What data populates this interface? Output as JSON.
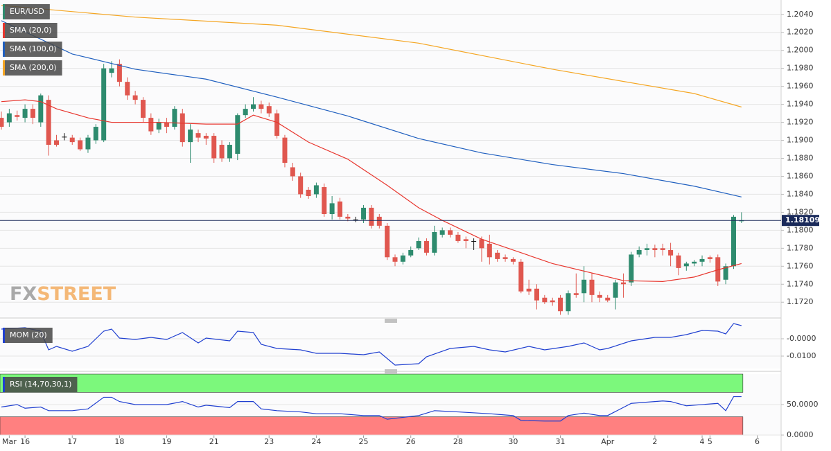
{
  "chart_data": [
    {
      "type": "candlestick",
      "title": "EUR/USD",
      "title_color": "#2e8b6e",
      "up_color": "#2e8b6e",
      "down_color": "#e0574f",
      "doji_color": "#111111",
      "categories": [
        null,
        "Mar",
        null,
        "16",
        null,
        null,
        null,
        null,
        null,
        "17",
        null,
        null,
        null,
        null,
        null,
        "18",
        null,
        null,
        null,
        null,
        null,
        "19",
        null,
        null,
        null,
        null,
        null,
        "21",
        null,
        null,
        null,
        null,
        null,
        null,
        "23",
        null,
        null,
        null,
        null,
        null,
        "24",
        null,
        null,
        null,
        null,
        null,
        "25",
        null,
        null,
        null,
        null,
        null,
        "26",
        null,
        null,
        null,
        null,
        null,
        "28",
        null,
        null,
        null,
        null,
        null,
        null,
        "30",
        null,
        null,
        null,
        null,
        null,
        "31",
        null,
        null,
        null,
        null,
        null,
        "Apr",
        null,
        null,
        null,
        null,
        null,
        "2",
        null,
        null,
        null,
        null,
        null,
        "4",
        "5",
        null,
        null,
        null,
        null,
        null,
        "6",
        null,
        null
      ],
      "ohlc": [
        [
          1.1925,
          1.1932,
          1.1912,
          1.1915
        ],
        [
          1.192,
          1.1935,
          1.1915,
          1.193
        ],
        [
          1.1928,
          1.1933,
          1.1922,
          1.1926
        ],
        [
          1.1925,
          1.194,
          1.192,
          1.1935
        ],
        [
          1.1935,
          1.194,
          1.1918,
          1.1925
        ],
        [
          1.192,
          1.1952,
          1.1915,
          1.195
        ],
        [
          1.1945,
          1.195,
          1.1883,
          1.1895
        ],
        [
          1.19,
          1.1906,
          1.1893,
          1.1895
        ],
        [
          1.1904,
          1.1908,
          1.19,
          1.1904
        ],
        [
          1.1903,
          1.1906,
          1.1895,
          1.1898
        ],
        [
          1.19,
          1.1903,
          1.1888,
          1.189
        ],
        [
          1.189,
          1.1906,
          1.1886,
          1.1903
        ],
        [
          1.19,
          1.1918,
          1.1896,
          1.1915
        ],
        [
          1.19,
          1.1985,
          1.1898,
          1.198
        ],
        [
          1.1975,
          1.1988,
          1.197,
          1.198
        ],
        [
          1.1985,
          1.199,
          1.196,
          1.1965
        ],
        [
          1.1965,
          1.197,
          1.1945,
          1.195
        ],
        [
          1.195,
          1.1955,
          1.194,
          1.1945
        ],
        [
          1.1945,
          1.1948,
          1.192,
          1.1925
        ],
        [
          1.1925,
          1.193,
          1.1906,
          1.191
        ],
        [
          1.1912,
          1.1924,
          1.1908,
          1.192
        ],
        [
          1.192,
          1.1925,
          1.1908,
          1.1915
        ],
        [
          1.1915,
          1.1938,
          1.1912,
          1.1935
        ],
        [
          1.193,
          1.1935,
          1.1893,
          1.1898
        ],
        [
          1.1898,
          1.1918,
          1.1875,
          1.1912
        ],
        [
          1.1908,
          1.1912,
          1.1898,
          1.1903
        ],
        [
          1.1905,
          1.1908,
          1.1895,
          1.1902
        ],
        [
          1.1905,
          1.1908,
          1.1875,
          1.188
        ],
        [
          1.1895,
          1.19,
          1.1876,
          1.188
        ],
        [
          1.188,
          1.1898,
          1.1876,
          1.1895
        ],
        [
          1.1885,
          1.193,
          1.1878,
          1.1928
        ],
        [
          1.1928,
          1.194,
          1.1925,
          1.1935
        ],
        [
          1.1935,
          1.1948,
          1.1932,
          1.194
        ],
        [
          1.194,
          1.1944,
          1.193,
          1.1935
        ],
        [
          1.1938,
          1.1942,
          1.1926,
          1.193
        ],
        [
          1.193,
          1.1934,
          1.1902,
          1.1905
        ],
        [
          1.1903,
          1.1906,
          1.187,
          1.1875
        ],
        [
          1.187,
          1.1875,
          1.1855,
          1.186
        ],
        [
          1.186,
          1.1864,
          1.1836,
          1.184
        ],
        [
          1.1845,
          1.1848,
          1.1835,
          1.1838
        ],
        [
          1.184,
          1.1853,
          1.1836,
          1.185
        ],
        [
          1.1848,
          1.1852,
          1.1815,
          1.1818
        ],
        [
          1.1818,
          1.1838,
          1.1812,
          1.183
        ],
        [
          1.1832,
          1.1836,
          1.1812,
          1.1815
        ],
        [
          1.1815,
          1.1818,
          1.181,
          1.1813
        ],
        [
          1.1812,
          1.1815,
          1.1809,
          1.1812
        ],
        [
          1.1812,
          1.1828,
          1.1808,
          1.1825
        ],
        [
          1.1825,
          1.1828,
          1.1802,
          1.1805
        ],
        [
          1.1815,
          1.1818,
          1.1802,
          1.1805
        ],
        [
          1.1805,
          1.1808,
          1.1767,
          1.177
        ],
        [
          1.177,
          1.1773,
          1.176,
          1.1765
        ],
        [
          1.1765,
          1.1775,
          1.1762,
          1.1772
        ],
        [
          1.1772,
          1.1782,
          1.177,
          1.1778
        ],
        [
          1.178,
          1.1792,
          1.1778,
          1.1788
        ],
        [
          1.1788,
          1.1791,
          1.1772,
          1.1775
        ],
        [
          1.1775,
          1.1805,
          1.1772,
          1.1798
        ],
        [
          1.1795,
          1.1803,
          1.1792,
          1.18
        ],
        [
          1.18,
          1.1803,
          1.1792,
          1.1795
        ],
        [
          1.1795,
          1.1798,
          1.1786,
          1.1788
        ],
        [
          1.179,
          1.1793,
          1.178,
          1.1788
        ],
        [
          1.1788,
          1.1791,
          1.1778,
          1.1788
        ],
        [
          1.179,
          1.1793,
          1.1765,
          1.178
        ],
        [
          1.1785,
          1.1795,
          1.1762,
          1.177
        ],
        [
          1.1775,
          1.1778,
          1.1765,
          1.1768
        ],
        [
          1.177,
          1.1773,
          1.1765,
          1.1768
        ],
        [
          1.1768,
          1.177,
          1.1762,
          1.1765
        ],
        [
          1.1765,
          1.1768,
          1.173,
          1.1732
        ],
        [
          1.1735,
          1.1745,
          1.1728,
          1.1732
        ],
        [
          1.1735,
          1.174,
          1.1712,
          1.1722
        ],
        [
          1.1725,
          1.1728,
          1.1718,
          1.172
        ],
        [
          1.1722,
          1.1725,
          1.1716,
          1.172
        ],
        [
          1.1725,
          1.1728,
          1.1706,
          1.171
        ],
        [
          1.171,
          1.1733,
          1.1706,
          1.173
        ],
        [
          1.173,
          1.1752,
          1.1725,
          1.1728
        ],
        [
          1.173,
          1.176,
          1.172,
          1.1745
        ],
        [
          1.1745,
          1.1752,
          1.172,
          1.1728
        ],
        [
          1.1728,
          1.1732,
          1.172,
          1.1725
        ],
        [
          1.1725,
          1.1728,
          1.172,
          1.1722
        ],
        [
          1.1725,
          1.1745,
          1.1712,
          1.1742
        ],
        [
          1.1742,
          1.1752,
          1.1725,
          1.174
        ],
        [
          1.1742,
          1.1776,
          1.1738,
          1.1773
        ],
        [
          1.1773,
          1.1782,
          1.177,
          1.1778
        ],
        [
          1.1778,
          1.1785,
          1.1772,
          1.178
        ],
        [
          1.178,
          1.1784,
          1.177,
          1.1778
        ],
        [
          1.178,
          1.1785,
          1.1772,
          1.1778
        ],
        [
          1.1778,
          1.1786,
          1.176,
          1.1772
        ],
        [
          1.1772,
          1.1775,
          1.175,
          1.1758
        ],
        [
          1.176,
          1.1765,
          1.1755,
          1.1763
        ],
        [
          1.1763,
          1.1767,
          1.176,
          1.1765
        ],
        [
          1.1765,
          1.1772,
          1.176,
          1.1768
        ],
        [
          1.177,
          1.1772,
          1.1764,
          1.1768
        ],
        [
          1.177,
          1.1773,
          1.1738,
          1.1743
        ],
        [
          1.1745,
          1.1763,
          1.174,
          1.176
        ],
        [
          1.176,
          1.1817,
          1.1757,
          1.1815
        ],
        [
          1.181,
          1.182,
          1.1808,
          1.1811
        ],
        null,
        null,
        null,
        null
      ],
      "series": [
        {
          "name": "SMA (20,0)",
          "color": "#e8362e",
          "x": [
            0,
            3,
            5,
            7,
            11,
            14,
            20,
            26,
            30,
            32,
            35,
            39,
            44,
            49,
            53,
            56,
            61,
            70,
            79,
            84,
            88,
            91,
            94
          ],
          "values": [
            1.1943,
            1.1945,
            1.1943,
            1.1935,
            1.1925,
            1.192,
            1.192,
            1.1918,
            1.1918,
            1.1928,
            1.192,
            1.1898,
            1.1879,
            1.185,
            1.1825,
            1.1811,
            1.179,
            1.1763,
            1.1744,
            1.1743,
            1.1748,
            1.1756,
            1.1763
          ]
        },
        {
          "name": "SMA (100,0)",
          "color": "#1f5fbf",
          "x": [
            0,
            9,
            17,
            26,
            35,
            44,
            53,
            61,
            70,
            79,
            88,
            94
          ],
          "values": [
            1.2033,
            1.1996,
            1.1979,
            1.1968,
            1.1948,
            1.1927,
            1.1902,
            1.1886,
            1.1873,
            1.1863,
            1.1849,
            1.1837
          ]
        },
        {
          "name": "SMA (200,0)",
          "color": "#f5a623",
          "x": [
            0,
            17,
            35,
            53,
            70,
            88,
            94
          ],
          "values": [
            1.205,
            1.2037,
            1.2028,
            1.2008,
            1.1979,
            1.1952,
            1.1937
          ]
        }
      ],
      "last_price": 1.18109,
      "last_price_color": "#1a2a5a",
      "ylim": [
        1.1704,
        1.2056
      ],
      "yticks": [
        {
          "value": 1.172,
          "label": "1.1720"
        },
        {
          "value": 1.174,
          "label": "1.1740"
        },
        {
          "value": 1.176,
          "label": "1.1760"
        },
        {
          "value": 1.178,
          "label": "1.1780"
        },
        {
          "value": 1.18,
          "label": "1.1800"
        },
        {
          "value": 1.182,
          "label": "1.1820"
        },
        {
          "value": 1.184,
          "label": "1.1840"
        },
        {
          "value": 1.186,
          "label": "1.1860"
        },
        {
          "value": 1.188,
          "label": "1.1880"
        },
        {
          "value": 1.19,
          "label": "1.1900"
        },
        {
          "value": 1.192,
          "label": "1.1920"
        },
        {
          "value": 1.194,
          "label": "1.1940"
        },
        {
          "value": 1.196,
          "label": "1.1960"
        },
        {
          "value": 1.198,
          "label": "1.1980"
        },
        {
          "value": 1.2,
          "label": "1.2000"
        },
        {
          "value": 1.202,
          "label": "1.2020"
        },
        {
          "value": 1.204,
          "label": "1.2040"
        }
      ],
      "grid": true,
      "watermark": [
        "FX",
        "STREET"
      ]
    },
    {
      "type": "line",
      "title": "MOM (20)",
      "color": "#1f3fd0",
      "x": [
        0,
        3,
        5,
        6,
        7,
        9,
        11,
        13,
        14,
        15,
        17,
        19,
        21,
        23,
        25,
        26,
        29,
        30,
        32,
        33,
        35,
        38,
        40,
        43,
        46,
        48,
        50,
        53,
        54,
        57,
        60,
        62,
        64,
        67,
        69,
        72,
        74,
        76,
        77,
        80,
        83,
        85,
        87,
        89,
        91,
        92,
        93,
        94
      ],
      "values": [
        0.0056,
        0.0064,
        0.0044,
        -0.0064,
        -0.0044,
        -0.0072,
        -0.0044,
        0.0044,
        0.0056,
        0.0004,
        -0.0004,
        0.0008,
        -0.0004,
        0.0036,
        -0.0024,
        0.0004,
        -0.0012,
        0.0044,
        0.0036,
        -0.0032,
        -0.0056,
        -0.0064,
        -0.0084,
        -0.0084,
        -0.0092,
        -0.0076,
        -0.0152,
        -0.0144,
        -0.0104,
        -0.0056,
        -0.0044,
        -0.0064,
        -0.0076,
        -0.0044,
        -0.0064,
        -0.0044,
        -0.0024,
        -0.0064,
        -0.0056,
        -0.0012,
        0.0008,
        0.0008,
        0.0024,
        0.0048,
        0.0044,
        0.0028,
        0.0088,
        0.0076
      ],
      "ylim": [
        -0.0172,
        0.0108
      ],
      "yticks": [
        {
          "value": 0,
          "label": "-0.0000"
        },
        {
          "value": -0.01,
          "label": "-0.0100"
        }
      ],
      "grid": true
    },
    {
      "type": "line",
      "title": "RSI (14,70,30,1)",
      "color": "#1f3fd0",
      "x": [
        0,
        2,
        3,
        5,
        6,
        9,
        11,
        13,
        14,
        15,
        17,
        21,
        23,
        25,
        26,
        29,
        30,
        32,
        33,
        35,
        38,
        40,
        43,
        46,
        48,
        49,
        53,
        55,
        58,
        62,
        65,
        66,
        69,
        71,
        72,
        74,
        76,
        77,
        80,
        84,
        85,
        87,
        91,
        92,
        93,
        94
      ],
      "values": [
        46,
        50,
        44,
        46,
        40,
        40,
        43,
        62,
        62,
        55,
        50,
        50,
        55,
        46,
        49,
        45,
        55,
        55,
        43,
        40,
        38,
        35,
        35,
        32,
        32,
        26,
        32,
        40,
        38,
        35,
        32,
        24,
        23,
        23,
        32,
        36,
        32,
        32,
        52,
        56,
        55,
        48,
        52,
        40,
        63,
        63
      ],
      "zones": [
        {
          "from": 70,
          "to": 100,
          "color": "#7cf87c"
        },
        {
          "from": 0,
          "to": 30,
          "color": "#ff8080"
        }
      ],
      "zone_end": 94,
      "ylim": [
        0,
        100
      ],
      "yticks": [
        {
          "value": 0,
          "label": "0.0000"
        },
        {
          "value": 50,
          "label": "50.0000"
        }
      ],
      "grid": true
    }
  ]
}
